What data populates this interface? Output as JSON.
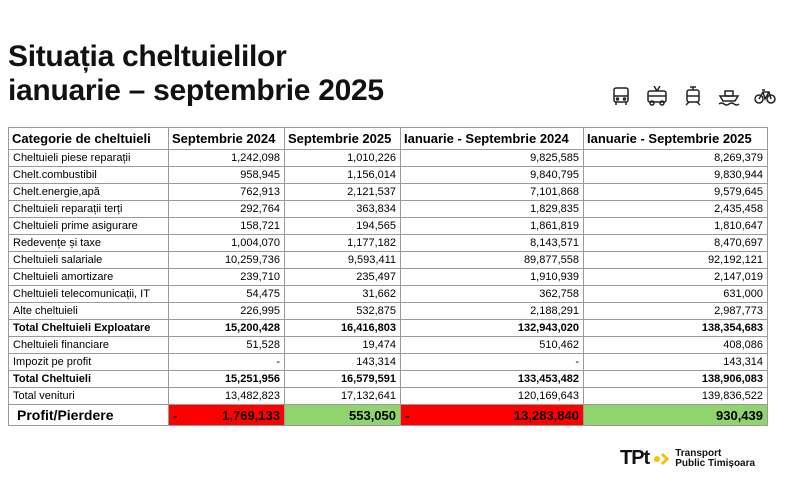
{
  "title": {
    "line1": "Situația cheltuielilor",
    "line2": "ianuarie – septembrie 2025"
  },
  "icons": [
    "bus-icon",
    "trolleybus-icon",
    "tram-icon",
    "boat-icon",
    "bicycle-icon"
  ],
  "table": {
    "headers": [
      "Categorie de cheltuieli",
      "Septembrie 2024",
      "Septembrie 2025",
      "Ianuarie - Septembrie 2024",
      "Ianuarie - Septembrie 2025"
    ],
    "rows": [
      [
        "Cheltuieli piese reparații",
        "1,242,098",
        "1,010,226",
        "9,825,585",
        "8,269,379"
      ],
      [
        "Chelt.combustibil",
        "958,945",
        "1,156,014",
        "9,840,795",
        "9,830,944"
      ],
      [
        "Chelt.energie,apă",
        "762,913",
        "2,121,537",
        "7,101,868",
        "9,579,645"
      ],
      [
        "Cheltuieli reparații terți",
        "292,764",
        "363,834",
        "1,829,835",
        "2,435,458"
      ],
      [
        "Cheltuieli prime asigurare",
        "158,721",
        "194,565",
        "1,861,819",
        "1,810,647"
      ],
      [
        "Redevențe și taxe",
        "1,004,070",
        "1,177,182",
        "8,143,571",
        "8,470,697"
      ],
      [
        "Cheltuieli salariale",
        "10,259,736",
        "9,593,411",
        "89,877,558",
        "92,192,121"
      ],
      [
        "Cheltuieli amortizare",
        "239,710",
        "235,497",
        "1,910,939",
        "2,147,019"
      ],
      [
        "Cheltuieli telecomunicații, IT",
        "54,475",
        "31,662",
        "362,758",
        "631,000"
      ],
      [
        "Alte cheltuieli",
        "226,995",
        "532,875",
        "2,188,291",
        "2,987,773"
      ],
      [
        "Total Cheltuieli Exploatare",
        "15,200,428",
        "16,416,803",
        "132,943,020",
        "138,354,683"
      ],
      [
        "Cheltuieli financiare",
        "51,528",
        "19,474",
        "510,462",
        "408,086"
      ],
      [
        "Impozit pe profit",
        "-",
        "143,314",
        "-",
        "143,314"
      ],
      [
        "Total Cheltuieli",
        "15,251,956",
        "16,579,591",
        "133,453,482",
        "138,906,083"
      ],
      [
        "Total venituri",
        "13,482,823",
        "17,132,641",
        "120,169,643",
        "139,836,522"
      ]
    ],
    "bold_rows": [
      10,
      13
    ],
    "profit": {
      "label": "Profit/Pierdere",
      "neg_sign": "-",
      "values": [
        "1,769,133",
        "553,050",
        "13,283,840",
        "930,439"
      ],
      "negative": [
        true,
        false,
        true,
        false
      ]
    }
  },
  "colors": {
    "loss": "#ff0000",
    "profit": "#8fd46e",
    "logo_accent": "#f5c400"
  },
  "logo": {
    "mark": "TPt",
    "line1": "Transport",
    "line2": "Public Timișoara"
  }
}
